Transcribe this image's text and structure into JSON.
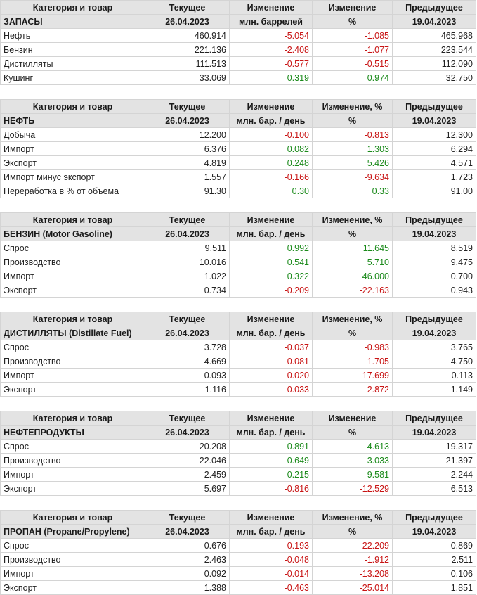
{
  "colors": {
    "positive": "#1b8a1b",
    "negative": "#c81414",
    "header_bg": "#e3e3e3"
  },
  "sections": [
    {
      "h1": [
        "Категория и товар",
        "Текущее",
        "Изменение",
        "Изменение",
        "Предыдущее"
      ],
      "h2": [
        "ЗАПАСЫ",
        "26.04.2023",
        "млн. баррелей",
        "%",
        "19.04.2023"
      ],
      "rows": [
        [
          "Нефть",
          "460.914",
          "-5.054",
          "-1.085",
          "465.968"
        ],
        [
          "Бензин",
          "221.136",
          "-2.408",
          "-1.077",
          "223.544"
        ],
        [
          "Дистилляты",
          "111.513",
          "-0.577",
          "-0.515",
          "112.090"
        ],
        [
          "Кушинг",
          "33.069",
          "0.319",
          "0.974",
          "32.750"
        ]
      ]
    },
    {
      "h1": [
        "Категория и товар",
        "Текущее",
        "Изменение",
        "Изменение, %",
        "Предыдущее"
      ],
      "h2": [
        "НЕФТЬ",
        "26.04.2023",
        "млн. бар. / день",
        "%",
        "19.04.2023"
      ],
      "rows": [
        [
          "Добыча",
          "12.200",
          "-0.100",
          "-0.813",
          "12.300"
        ],
        [
          "Импорт",
          "6.376",
          "0.082",
          "1.303",
          "6.294"
        ],
        [
          "Экспорт",
          "4.819",
          "0.248",
          "5.426",
          "4.571"
        ],
        [
          "Импорт минус экспорт",
          "1.557",
          "-0.166",
          "-9.634",
          "1.723"
        ],
        [
          "Переработка в % от объема",
          "91.30",
          "0.30",
          "0.33",
          "91.00"
        ]
      ]
    },
    {
      "h1": [
        "Категория и товар",
        "Текущее",
        "Изменение",
        "Изменение, %",
        "Предыдущее"
      ],
      "h2": [
        "БЕНЗИН (Motor Gasoline)",
        "26.04.2023",
        "млн. бар. / день",
        "%",
        "19.04.2023"
      ],
      "rows": [
        [
          "Спрос",
          "9.511",
          "0.992",
          "11.645",
          "8.519"
        ],
        [
          "Производство",
          "10.016",
          "0.541",
          "5.710",
          "9.475"
        ],
        [
          "Импорт",
          "1.022",
          "0.322",
          "46.000",
          "0.700"
        ],
        [
          "Экспорт",
          "0.734",
          "-0.209",
          "-22.163",
          "0.943"
        ]
      ]
    },
    {
      "h1": [
        "Категория и товар",
        "Текущее",
        "Изменение",
        "Изменение, %",
        "Предыдущее"
      ],
      "h2": [
        "ДИСТИЛЛЯТЫ (Distillate Fuel)",
        "26.04.2023",
        "млн. бар. / день",
        "%",
        "19.04.2023"
      ],
      "rows": [
        [
          "Спрос",
          "3.728",
          "-0.037",
          "-0.983",
          "3.765"
        ],
        [
          "Производство",
          "4.669",
          "-0.081",
          "-1.705",
          "4.750"
        ],
        [
          "Импорт",
          "0.093",
          "-0.020",
          "-17.699",
          "0.113"
        ],
        [
          "Экспорт",
          "1.116",
          "-0.033",
          "-2.872",
          "1.149"
        ]
      ]
    },
    {
      "h1": [
        "Категория и товар",
        "Текущее",
        "Изменение",
        "Изменение",
        "Предыдущее"
      ],
      "h2": [
        "НЕФТЕПРОДУКТЫ",
        "26.04.2023",
        "млн. бар. / день",
        "%",
        "19.04.2023"
      ],
      "rows": [
        [
          "Спрос",
          "20.208",
          "0.891",
          "4.613",
          "19.317"
        ],
        [
          "Производство",
          "22.046",
          "0.649",
          "3.033",
          "21.397"
        ],
        [
          "Импорт",
          "2.459",
          "0.215",
          "9.581",
          "2.244"
        ],
        [
          "Экспорт",
          "5.697",
          "-0.816",
          "-12.529",
          "6.513"
        ]
      ]
    },
    {
      "h1": [
        "Категория и товар",
        "Текущее",
        "Изменение",
        "Изменение, %",
        "Предыдущее"
      ],
      "h2": [
        "ПРОПАН (Propane/Propylene)",
        "26.04.2023",
        "млн. бар. / день",
        "%",
        "19.04.2023"
      ],
      "rows": [
        [
          "Спрос",
          "0.676",
          "-0.193",
          "-22.209",
          "0.869"
        ],
        [
          "Производство",
          "2.463",
          "-0.048",
          "-1.912",
          "2.511"
        ],
        [
          "Импорт",
          "0.092",
          "-0.014",
          "-13.208",
          "0.106"
        ],
        [
          "Экспорт",
          "1.388",
          "-0.463",
          "-25.014",
          "1.851"
        ]
      ]
    }
  ]
}
